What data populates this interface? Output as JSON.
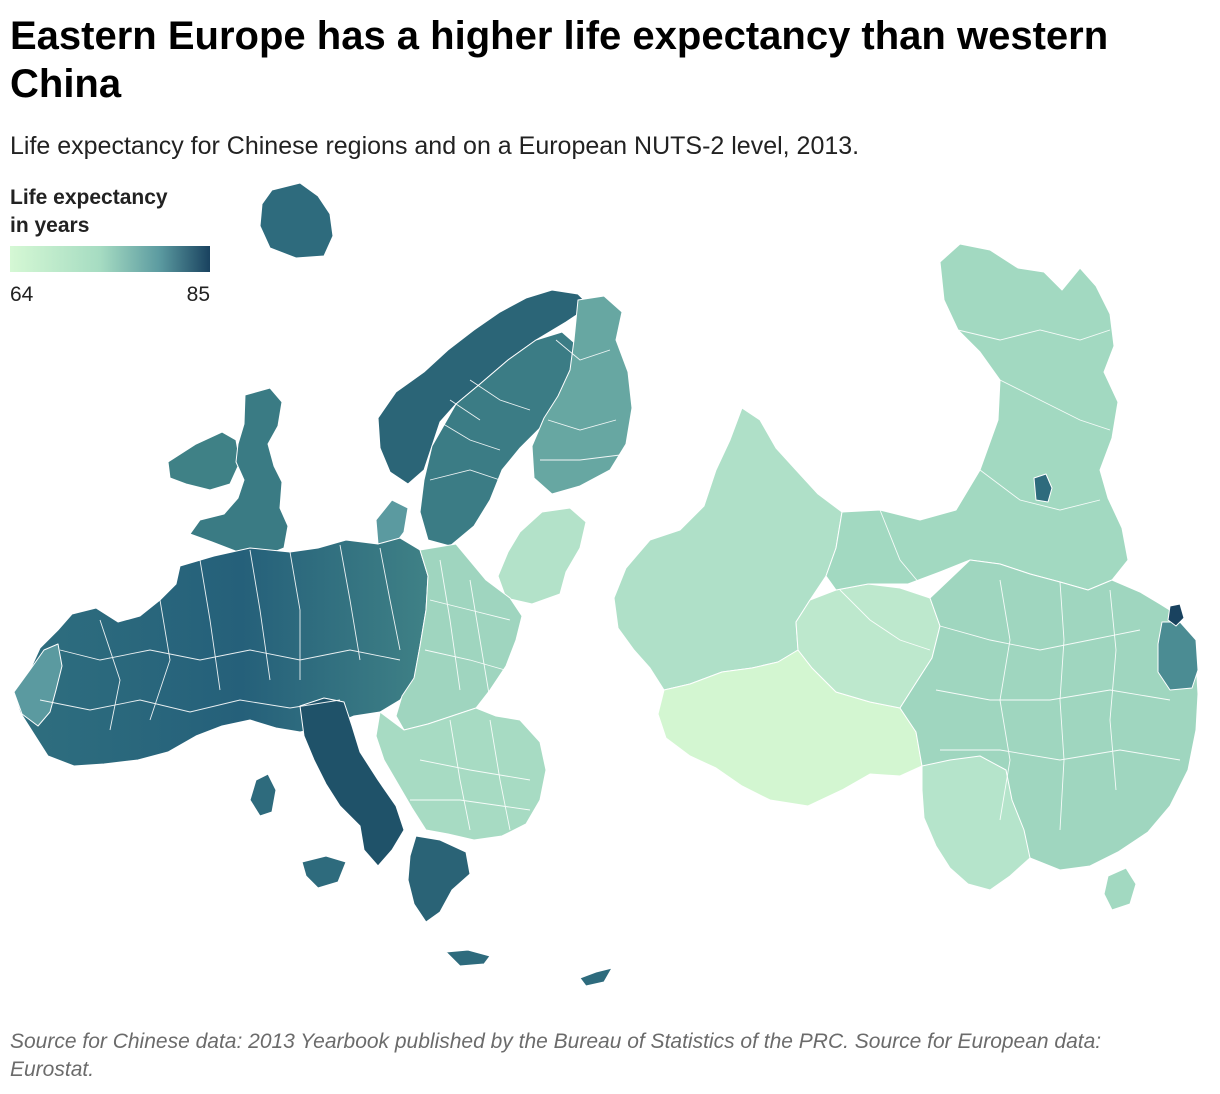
{
  "title": "Eastern Europe has a higher life expectancy than western China",
  "subtitle": "Life expectancy for Chinese regions and on a European NUTS-2 level, 2013.",
  "legend": {
    "title_line1": "Life expectancy",
    "title_line2": "in years",
    "min_label": "64",
    "max_label": "85",
    "min_value": 64,
    "max_value": 85,
    "gradient_colors": [
      "#d5f8d4",
      "#a6dcc2",
      "#5b9aa0",
      "#19425f"
    ]
  },
  "source": "Source for Chinese data: 2013 Yearbook published by the Bureau of Statistics of the PRC. Source for European data: Eurostat.",
  "colors": {
    "background": "#ffffff",
    "region_border": "#ffffff",
    "china_main": "#a2d9c1",
    "china_west": "#afe0c8",
    "tibet": "#d3f6d1",
    "qinghai": "#bde8cd",
    "europe_east": "#9fd5bf",
    "europe_west": "#2f6f7f",
    "europe_dark": "#1f5269",
    "scandinavia": "#4f9298",
    "finland": "#67a7a2",
    "beijing": "#2e6b7d",
    "shanghai": "#19425f",
    "zhejiang": "#4b8c93"
  }
}
